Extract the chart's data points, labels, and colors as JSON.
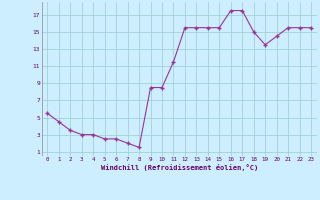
{
  "x": [
    0,
    1,
    2,
    3,
    4,
    5,
    6,
    7,
    8,
    9,
    10,
    11,
    12,
    13,
    14,
    15,
    16,
    17,
    18,
    19,
    20,
    21,
    22,
    23
  ],
  "y": [
    5.5,
    4.5,
    3.5,
    3.0,
    3.0,
    2.5,
    2.5,
    2.0,
    1.5,
    8.5,
    8.5,
    11.5,
    15.5,
    15.5,
    15.5,
    15.5,
    17.5,
    17.5,
    15.0,
    13.5,
    14.5,
    15.5,
    15.5,
    15.5
  ],
  "line_color": "#993399",
  "marker_color": "#993399",
  "bg_color": "#cceeff",
  "grid_color": "#99cccc",
  "xlabel": "Windchill (Refroidissement éolien,°C)",
  "ytick_labels": [
    "1",
    "3",
    "5",
    "7",
    "9",
    "11",
    "13",
    "15",
    "17"
  ],
  "ytick_vals": [
    1,
    3,
    5,
    7,
    9,
    11,
    13,
    15,
    17
  ],
  "xlim": [
    -0.5,
    23.5
  ],
  "ylim": [
    0.5,
    18.5
  ],
  "xtick_labels": [
    "0",
    "1",
    "2",
    "3",
    "4",
    "5",
    "6",
    "7",
    "8",
    "9",
    "10",
    "11",
    "12",
    "13",
    "14",
    "15",
    "16",
    "17",
    "18",
    "19",
    "20",
    "21",
    "22",
    "23"
  ]
}
